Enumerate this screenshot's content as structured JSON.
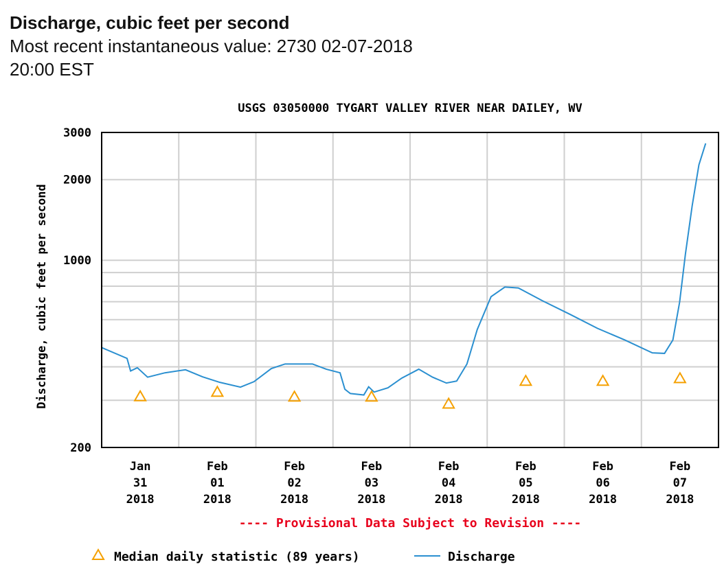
{
  "header": {
    "title": "Discharge, cubic feet per second",
    "subtitle": "Most recent instantaneous value: 2730 02-07-2018   20:00 EST"
  },
  "chart_data": {
    "type": "line",
    "title": "USGS 03050000 TYGART VALLEY RIVER NEAR DAILEY, WV",
    "ylabel": "Discharge, cubic feet per second",
    "xlabel": "",
    "yscale": "log",
    "ylim": [
      200,
      3000
    ],
    "ytick_labels": [
      {
        "value": 200,
        "label": "200"
      },
      {
        "value": 1000,
        "label": "1000"
      },
      {
        "value": 2000,
        "label": "2000"
      },
      {
        "value": 3000,
        "label": "3000"
      }
    ],
    "ygrid": [
      200,
      300,
      400,
      500,
      600,
      700,
      800,
      900,
      1000,
      2000,
      3000
    ],
    "x_unit": "hours since 2018-01-31 00:00",
    "xlim": [
      0,
      192
    ],
    "xtick_labels": [
      [
        "Jan",
        "31",
        "2018"
      ],
      [
        "Feb",
        "01",
        "2018"
      ],
      [
        "Feb",
        "02",
        "2018"
      ],
      [
        "Feb",
        "03",
        "2018"
      ],
      [
        "Feb",
        "04",
        "2018"
      ],
      [
        "Feb",
        "05",
        "2018"
      ],
      [
        "Feb",
        "06",
        "2018"
      ],
      [
        "Feb",
        "07",
        "2018"
      ]
    ],
    "grid": true,
    "footnote": "---- Provisional Data Subject to Revision ----",
    "legend_position": "bottom",
    "series": [
      {
        "name": "Median daily statistic (89 years)",
        "type": "scatter",
        "marker": "triangle",
        "color": "#f5a000",
        "x": [
          12,
          36,
          60,
          84,
          108,
          132,
          156,
          180
        ],
        "y": [
          310,
          322,
          309,
          309,
          291,
          354,
          354,
          362
        ]
      },
      {
        "name": "Discharge",
        "type": "line",
        "color": "#2a8fd0",
        "x": [
          0,
          7.9,
          9,
          11.1,
          14.3,
          19.7,
          26.1,
          31.4,
          36.8,
          43.2,
          47.4,
          52.8,
          57.1,
          65.6,
          69.9,
          74.2,
          75.7,
          77.4,
          81.6,
          83.1,
          84.8,
          89.1,
          93.4,
          98.7,
          103,
          107.3,
          110.5,
          113.7,
          116.9,
          121.2,
          125.5,
          129.7,
          137.2,
          145.8,
          154.3,
          162.8,
          171.4,
          175.2,
          177.8,
          179.9,
          181.7,
          183.8,
          185.9,
          188
        ],
        "y": [
          472,
          430,
          386,
          397,
          366,
          380,
          390,
          367,
          350,
          336,
          352,
          394,
          410,
          410,
          392,
          380,
          330,
          318,
          314,
          337,
          322,
          334,
          363,
          392,
          366,
          348,
          354,
          410,
          551,
          731,
          794,
          788,
          706,
          628,
          557,
          504,
          451,
          449,
          504,
          698,
          1054,
          1596,
          2270,
          2730
        ]
      }
    ]
  }
}
